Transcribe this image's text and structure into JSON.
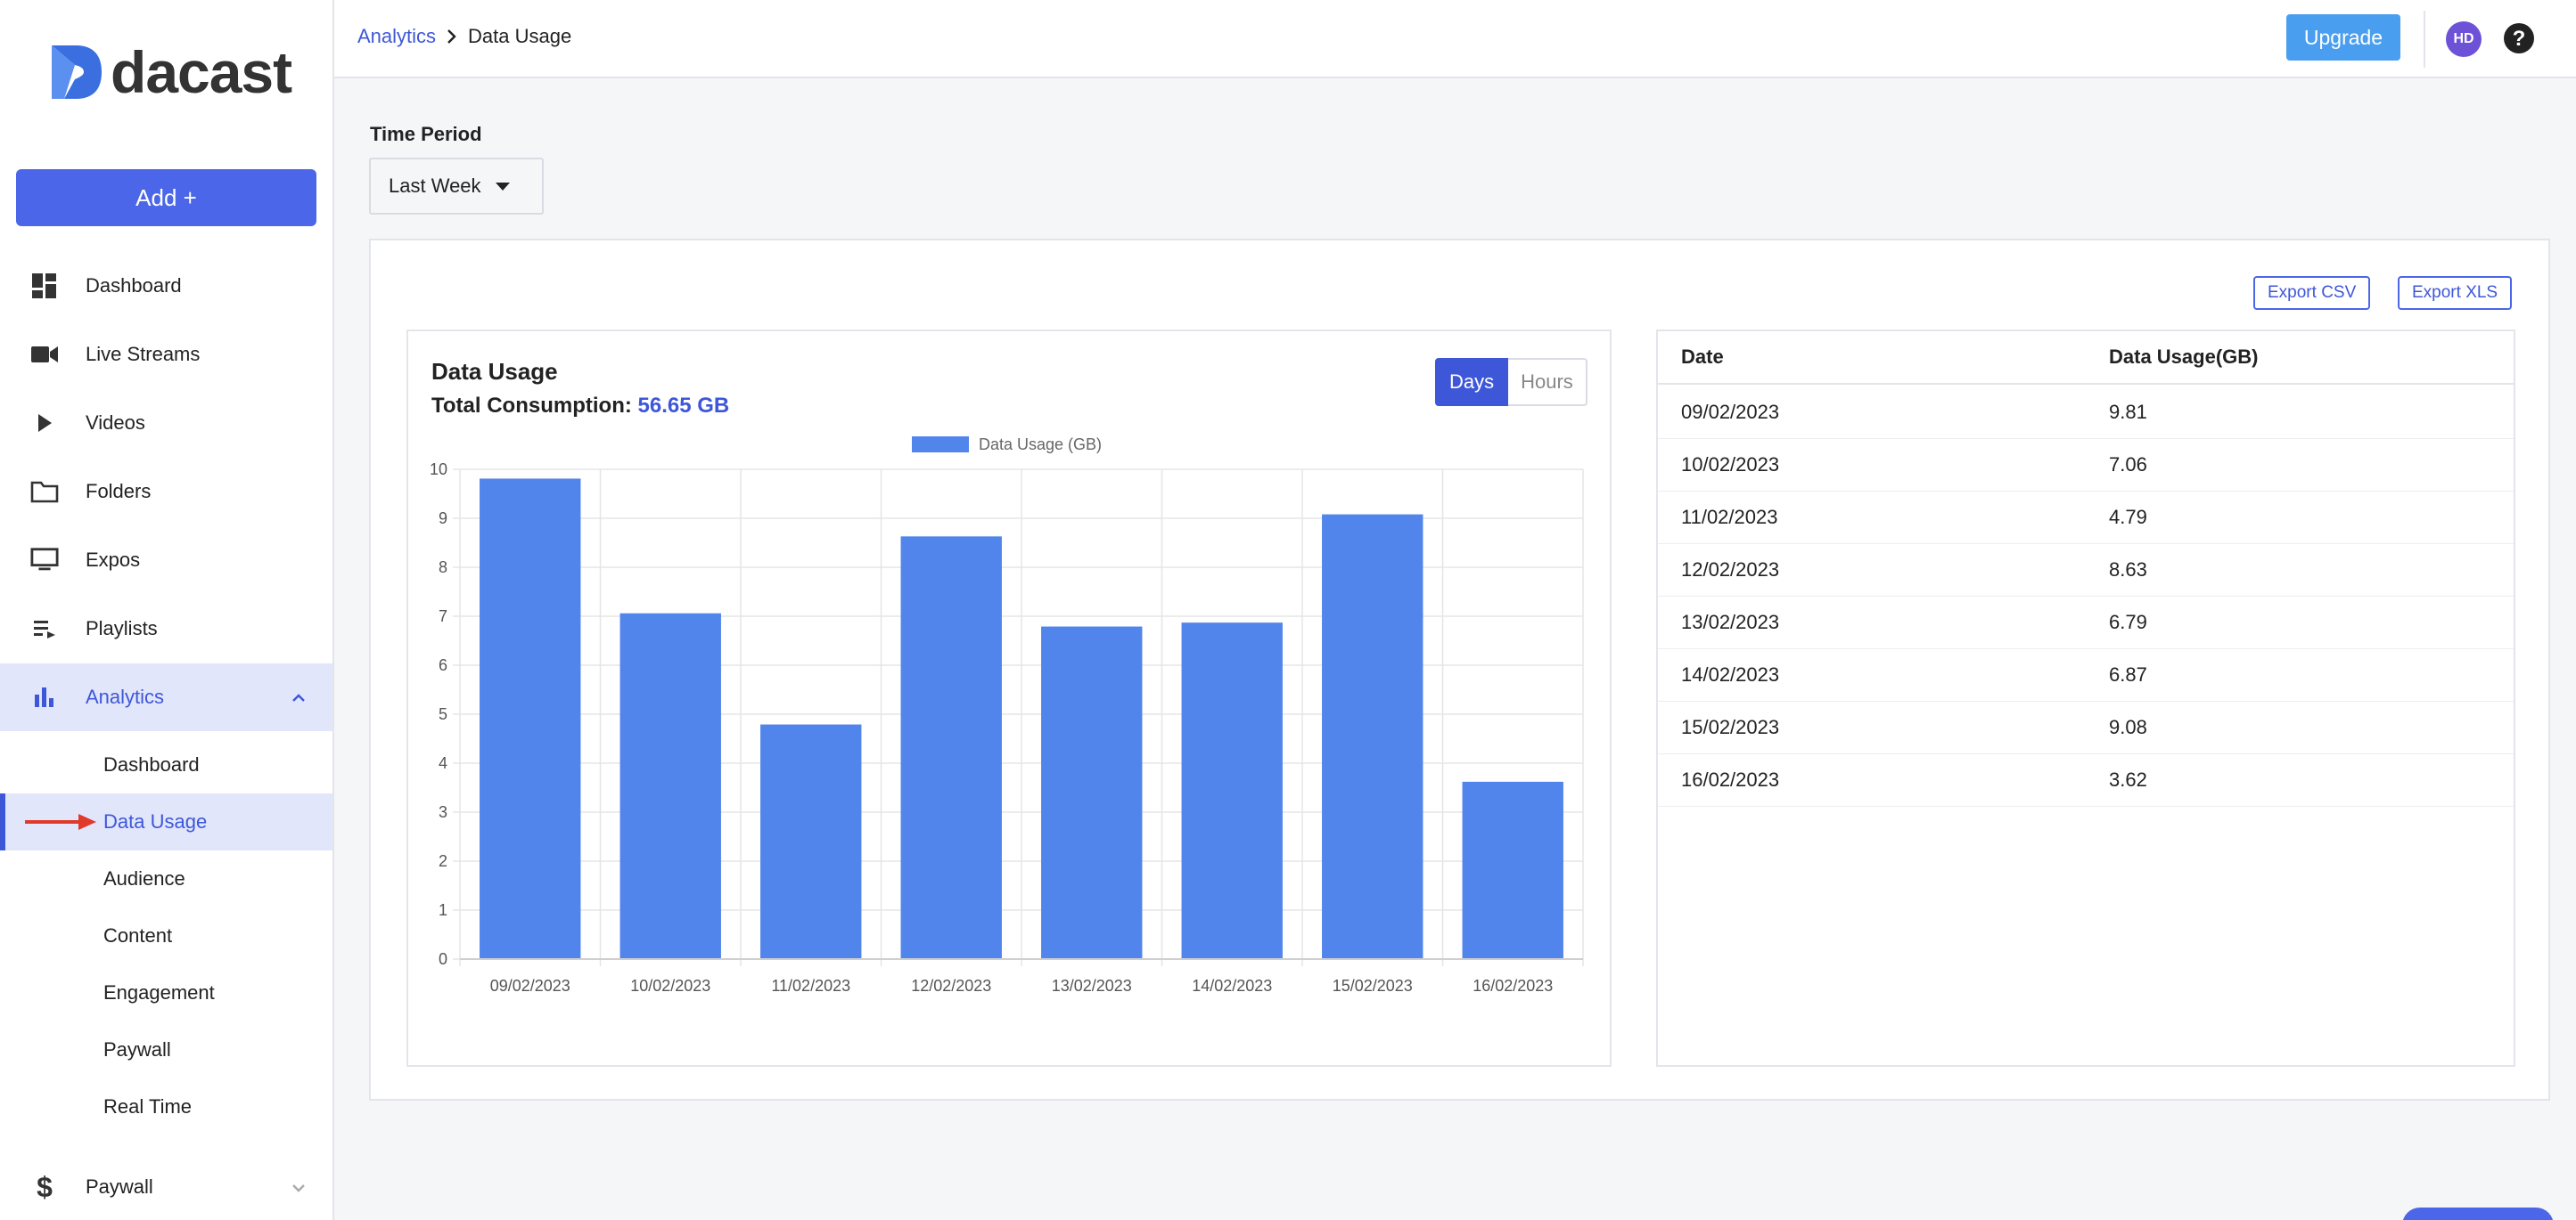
{
  "brand": {
    "name": "dacast"
  },
  "sidebar": {
    "add_label": "Add +",
    "items": [
      {
        "label": "Dashboard",
        "icon": "dashboard-icon"
      },
      {
        "label": "Live Streams",
        "icon": "video-camera-icon"
      },
      {
        "label": "Videos",
        "icon": "play-icon"
      },
      {
        "label": "Folders",
        "icon": "folder-icon"
      },
      {
        "label": "Expos",
        "icon": "monitor-icon"
      },
      {
        "label": "Playlists",
        "icon": "playlist-icon"
      },
      {
        "label": "Analytics",
        "icon": "bar-chart-icon"
      },
      {
        "label": "Paywall",
        "icon": "dollar-icon"
      }
    ],
    "analytics_sub": [
      {
        "label": "Dashboard"
      },
      {
        "label": "Data Usage"
      },
      {
        "label": "Audience"
      },
      {
        "label": "Content"
      },
      {
        "label": "Engagement"
      },
      {
        "label": "Paywall"
      },
      {
        "label": "Real Time"
      }
    ]
  },
  "header": {
    "breadcrumb": {
      "parent": "Analytics",
      "current": "Data Usage"
    },
    "upgrade_label": "Upgrade",
    "avatar_initials": "HD"
  },
  "filters": {
    "time_period_label": "Time Period",
    "time_period_value": "Last Week"
  },
  "exports": {
    "csv_label": "Export CSV",
    "xls_label": "Export XLS"
  },
  "chart_panel": {
    "title": "Data Usage",
    "total_label": "Total Consumption:",
    "total_value": "56.65 GB",
    "toggle": {
      "days": "Days",
      "hours": "Hours",
      "selected": "Days"
    }
  },
  "table": {
    "headers": [
      "Date",
      "Data Usage(GB)"
    ],
    "rows": [
      [
        "09/02/2023",
        "9.81"
      ],
      [
        "10/02/2023",
        "7.06"
      ],
      [
        "11/02/2023",
        "4.79"
      ],
      [
        "12/02/2023",
        "8.63"
      ],
      [
        "13/02/2023",
        "6.79"
      ],
      [
        "14/02/2023",
        "6.87"
      ],
      [
        "15/02/2023",
        "9.08"
      ],
      [
        "16/02/2023",
        "3.62"
      ]
    ]
  },
  "colors": {
    "accent": "#3e57d9",
    "bar": "#5285ec",
    "upgrade": "#4a9ef0",
    "active_bg": "#e1e6fb"
  },
  "chart_data": {
    "type": "bar",
    "categories": [
      "09/02/2023",
      "10/02/2023",
      "11/02/2023",
      "12/02/2023",
      "13/02/2023",
      "14/02/2023",
      "15/02/2023",
      "16/02/2023"
    ],
    "series": [
      {
        "name": "Data Usage (GB)",
        "values": [
          9.81,
          7.06,
          4.79,
          8.63,
          6.79,
          6.87,
          9.08,
          3.62
        ]
      }
    ],
    "ylim": [
      0,
      10
    ],
    "yticks": [
      0,
      1,
      2,
      3,
      4,
      5,
      6,
      7,
      8,
      9,
      10
    ],
    "grid": true,
    "legend": "top-center"
  }
}
